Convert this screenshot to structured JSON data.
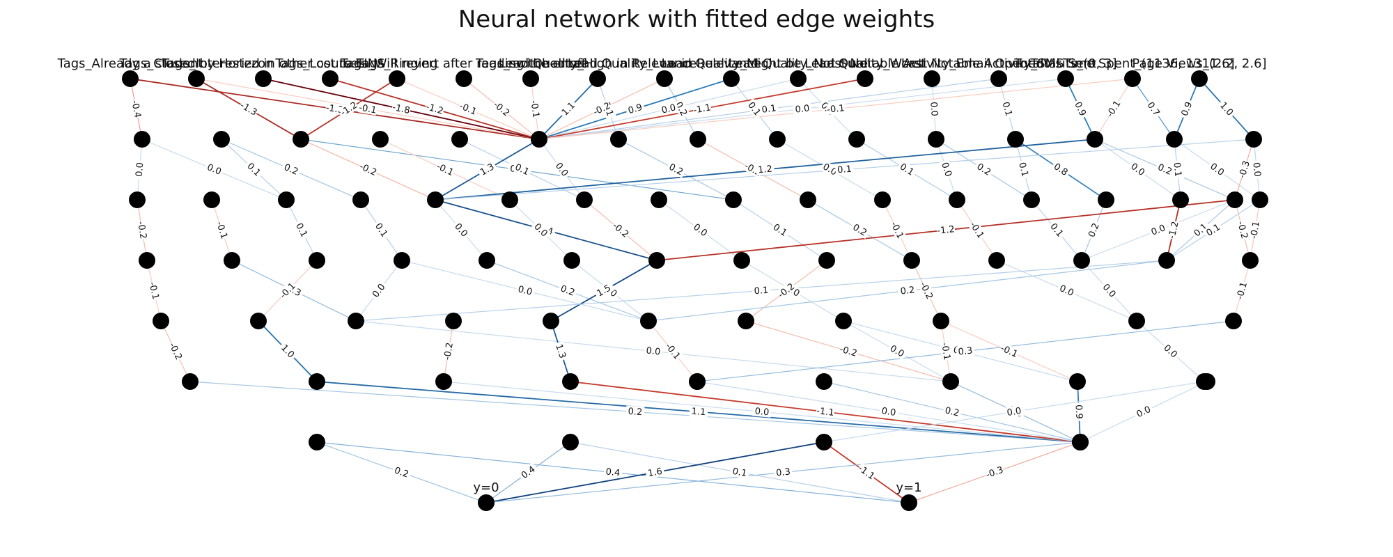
{
  "title": "Neural network with fitted edge weights",
  "colors": {
    "node": "#000000",
    "pos_strong": "#08306b",
    "pos_mid": "#2c7bb6",
    "pos_light": "#c6dbef",
    "neg_strong": "#67000d",
    "neg_mid": "#de4a34",
    "neg_light": "#fcdcd0"
  },
  "layer_sizes": [
    17,
    15,
    17,
    14,
    11,
    11,
    5,
    2
  ],
  "input_labels": [
    "Tags_Already a student",
    "Tags_Closed by Horizzon",
    "Tags_Interested in other courses",
    "Tags_Lost to EINS",
    "Tags_Ringing",
    "Tags_Will revert after reading the email",
    "Tags_switched off",
    "Lead Quality_High in Relevance",
    "Lead Quality_Low in Relevance",
    "Lead Quality_Might be",
    "Lead Quality_Not Sure",
    "Lead Quality_Worst",
    "Last Notable Activity_Email Opened",
    "Last Notable Activity_SMS Sent",
    "TotalVisits_(0, 3]",
    "Total Time Spent_(1136, 1311.6]",
    "Page Views_(2.2, 2.6]"
  ],
  "output_labels": [
    "y=0",
    "y=1"
  ],
  "edges": [
    {
      "l": 0,
      "a": 0,
      "b": 0,
      "w": -0.4
    },
    {
      "l": 0,
      "a": 0,
      "b": 5,
      "w": -1.3
    },
    {
      "l": 0,
      "a": 1,
      "b": 5,
      "w": -0.1
    },
    {
      "l": 0,
      "a": 1,
      "b": 2,
      "w": -1.3
    },
    {
      "l": 0,
      "a": 2,
      "b": 5,
      "w": 0.2
    },
    {
      "l": 0,
      "a": 2,
      "b": 5,
      "w": -1.8
    },
    {
      "l": 0,
      "a": 3,
      "b": 5,
      "w": -1.2
    },
    {
      "l": 0,
      "a": 4,
      "b": 5,
      "w": -0.1
    },
    {
      "l": 0,
      "a": 4,
      "b": 2,
      "w": -1.2
    },
    {
      "l": 0,
      "a": 5,
      "b": 5,
      "w": -0.2
    },
    {
      "l": 0,
      "a": 6,
      "b": 5,
      "w": -0.1
    },
    {
      "l": 0,
      "a": 7,
      "b": 5,
      "w": 1.1
    },
    {
      "l": 0,
      "a": 7,
      "b": 6,
      "w": 0.1
    },
    {
      "l": 0,
      "a": 8,
      "b": 5,
      "w": -0.2
    },
    {
      "l": 0,
      "a": 8,
      "b": 7,
      "w": 0.2
    },
    {
      "l": 0,
      "a": 9,
      "b": 5,
      "w": 0.9
    },
    {
      "l": 0,
      "a": 9,
      "b": 8,
      "w": 0.1
    },
    {
      "l": 0,
      "a": 10,
      "b": 5,
      "w": -0.0
    },
    {
      "l": 0,
      "a": 10,
      "b": 9,
      "w": 0.0
    },
    {
      "l": 0,
      "a": 11,
      "b": 5,
      "w": -1.1
    },
    {
      "l": 0,
      "a": 12,
      "b": 10,
      "w": -0.0
    },
    {
      "l": 0,
      "a": 13,
      "b": 5,
      "w": 0.1
    },
    {
      "l": 0,
      "a": 13,
      "b": 11,
      "w": 0.1
    },
    {
      "l": 0,
      "a": 14,
      "b": 5,
      "w": 0.0
    },
    {
      "l": 0,
      "a": 14,
      "b": 12,
      "w": 0.9
    },
    {
      "l": 0,
      "a": 15,
      "b": 12,
      "w": -0.1
    },
    {
      "l": 0,
      "a": 15,
      "b": 13,
      "w": 0.7
    },
    {
      "l": 0,
      "a": 15,
      "b": 5,
      "w": -0.1
    },
    {
      "l": 0,
      "a": 16,
      "b": 13,
      "w": 0.9
    },
    {
      "l": 0,
      "a": 16,
      "b": 14,
      "w": -0.2
    },
    {
      "l": 0,
      "a": 16,
      "b": 14,
      "w": 1.0
    },
    {
      "l": 1,
      "a": 0,
      "b": 0,
      "w": 0.0
    },
    {
      "l": 1,
      "a": 0,
      "b": 2,
      "w": 0.0
    },
    {
      "l": 1,
      "a": 1,
      "b": 2,
      "w": 0.1
    },
    {
      "l": 1,
      "a": 1,
      "b": 3,
      "w": 0.2
    },
    {
      "l": 1,
      "a": 2,
      "b": 4,
      "w": -0.2
    },
    {
      "l": 1,
      "a": 2,
      "b": 4,
      "w": -0.2
    },
    {
      "l": 1,
      "a": 2,
      "b": 8,
      "w": 0.5
    },
    {
      "l": 1,
      "a": 3,
      "b": 5,
      "w": -0.1
    },
    {
      "l": 1,
      "a": 4,
      "b": 6,
      "w": 0.1
    },
    {
      "l": 1,
      "a": 5,
      "b": 4,
      "w": 0.1
    },
    {
      "l": 1,
      "a": 5,
      "b": 4,
      "w": 1.3
    },
    {
      "l": 1,
      "a": 5,
      "b": 6,
      "w": 0.0
    },
    {
      "l": 1,
      "a": 6,
      "b": 8,
      "w": 0.2
    },
    {
      "l": 1,
      "a": 7,
      "b": 9,
      "w": -0.2
    },
    {
      "l": 1,
      "a": 8,
      "b": 10,
      "w": -0.0
    },
    {
      "l": 1,
      "a": 9,
      "b": 11,
      "w": -0.0
    },
    {
      "l": 1,
      "a": 9,
      "b": 11,
      "w": 0.1
    },
    {
      "l": 1,
      "a": 10,
      "b": 11,
      "w": 0.0
    },
    {
      "l": 1,
      "a": 10,
      "b": 12,
      "w": 0.2
    },
    {
      "l": 1,
      "a": 11,
      "b": 12,
      "w": 0.1
    },
    {
      "l": 1,
      "a": 11,
      "b": 13,
      "w": 0.8
    },
    {
      "l": 1,
      "a": 12,
      "b": 4,
      "w": 1.2
    },
    {
      "l": 1,
      "a": 12,
      "b": 14,
      "w": -0.0
    },
    {
      "l": 1,
      "a": 12,
      "b": 15,
      "w": 0.2
    },
    {
      "l": 1,
      "a": 13,
      "b": 16,
      "w": -0.0
    },
    {
      "l": 1,
      "a": 13,
      "b": 14,
      "w": 0.1
    },
    {
      "l": 1,
      "a": 14,
      "b": 15,
      "w": -0.3
    },
    {
      "l": 1,
      "a": 14,
      "b": 16,
      "w": 0.1
    },
    {
      "l": 1,
      "a": 14,
      "b": 16,
      "w": 0.0
    },
    {
      "l": 1,
      "a": 14,
      "b": 4,
      "w": 0.1
    },
    {
      "l": 2,
      "a": 0,
      "b": 0,
      "w": -0.2
    },
    {
      "l": 2,
      "a": 1,
      "b": 1,
      "w": -0.1
    },
    {
      "l": 2,
      "a": 2,
      "b": 2,
      "w": 0.1
    },
    {
      "l": 2,
      "a": 3,
      "b": 3,
      "w": 0.1
    },
    {
      "l": 2,
      "a": 4,
      "b": 4,
      "w": 0.0
    },
    {
      "l": 2,
      "a": 4,
      "b": 6,
      "w": -0.1
    },
    {
      "l": 2,
      "a": 4,
      "b": 6,
      "w": 1.4
    },
    {
      "l": 2,
      "a": 5,
      "b": 5,
      "w": 0.0
    },
    {
      "l": 2,
      "a": 6,
      "b": 6,
      "w": -0.2
    },
    {
      "l": 2,
      "a": 7,
      "b": 7,
      "w": 0.0
    },
    {
      "l": 2,
      "a": 8,
      "b": 8,
      "w": 0.1
    },
    {
      "l": 2,
      "a": 9,
      "b": 9,
      "w": 0.2
    },
    {
      "l": 2,
      "a": 10,
      "b": 9,
      "w": -0.1
    },
    {
      "l": 2,
      "a": 11,
      "b": 10,
      "w": -0.1
    },
    {
      "l": 2,
      "a": 12,
      "b": 11,
      "w": 0.1
    },
    {
      "l": 2,
      "a": 13,
      "b": 11,
      "w": 0.2
    },
    {
      "l": 2,
      "a": 14,
      "b": 12,
      "w": -1.2
    },
    {
      "l": 2,
      "a": 15,
      "b": 6,
      "w": -1.2
    },
    {
      "l": 2,
      "a": 15,
      "b": 12,
      "w": -0.1
    },
    {
      "l": 2,
      "a": 15,
      "b": 12,
      "w": 0.1
    },
    {
      "l": 2,
      "a": 16,
      "b": 13,
      "w": -0.1
    },
    {
      "l": 2,
      "a": 15,
      "b": 13,
      "w": -0.2
    },
    {
      "l": 2,
      "a": 15,
      "b": 11,
      "w": -0.0
    },
    {
      "l": 2,
      "a": 16,
      "b": 12,
      "w": 0.1
    },
    {
      "l": 2,
      "a": 16,
      "b": 13,
      "w": -0.1
    },
    {
      "l": 3,
      "a": 0,
      "b": 0,
      "w": -0.1
    },
    {
      "l": 3,
      "a": 1,
      "b": 2,
      "w": 0.3
    },
    {
      "l": 3,
      "a": 2,
      "b": 1,
      "w": -0.1
    },
    {
      "l": 3,
      "a": 3,
      "b": 2,
      "w": 0.0
    },
    {
      "l": 3,
      "a": 3,
      "b": 5,
      "w": 0.0
    },
    {
      "l": 3,
      "a": 4,
      "b": 5,
      "w": 0.2
    },
    {
      "l": 3,
      "a": 5,
      "b": 5,
      "w": 0.0
    },
    {
      "l": 3,
      "a": 6,
      "b": 4,
      "w": 1.5
    },
    {
      "l": 3,
      "a": 7,
      "b": 7,
      "w": 0.0
    },
    {
      "l": 3,
      "a": 8,
      "b": 6,
      "w": -0.2
    },
    {
      "l": 3,
      "a": 9,
      "b": 8,
      "w": -0.2
    },
    {
      "l": 3,
      "a": 10,
      "b": 9,
      "w": 0.0
    },
    {
      "l": 3,
      "a": 11,
      "b": 9,
      "w": 0.0
    },
    {
      "l": 3,
      "a": 12,
      "b": 2,
      "w": 0.1
    },
    {
      "l": 3,
      "a": 12,
      "b": 5,
      "w": 0.2
    },
    {
      "l": 3,
      "a": 13,
      "b": 10,
      "w": -0.1
    },
    {
      "l": 4,
      "a": 0,
      "b": 0,
      "w": -0.2
    },
    {
      "l": 4,
      "a": 1,
      "b": 1,
      "w": 1.0
    },
    {
      "l": 4,
      "a": 2,
      "b": 6,
      "w": -0.0
    },
    {
      "l": 4,
      "a": 3,
      "b": 2,
      "w": -0.2
    },
    {
      "l": 4,
      "a": 4,
      "b": 3,
      "w": 1.3
    },
    {
      "l": 4,
      "a": 5,
      "b": 4,
      "w": -0.1
    },
    {
      "l": 4,
      "a": 6,
      "b": 6,
      "w": -0.2
    },
    {
      "l": 4,
      "a": 7,
      "b": 6,
      "w": -0.0
    },
    {
      "l": 4,
      "a": 7,
      "b": 7,
      "w": 0.0
    },
    {
      "l": 4,
      "a": 8,
      "b": 6,
      "w": -0.1
    },
    {
      "l": 4,
      "a": 8,
      "b": 7,
      "w": -0.1
    },
    {
      "l": 4,
      "a": 9,
      "b": 8,
      "w": -0.0
    },
    {
      "l": 4,
      "a": 10,
      "b": 9,
      "w": 0.3
    },
    {
      "l": 5,
      "a": 0,
      "b": 6,
      "w": 0.2
    },
    {
      "l": 5,
      "a": 1,
      "b": 4,
      "w": 1.1
    },
    {
      "l": 5,
      "a": 2,
      "b": 4,
      "w": -0.0
    },
    {
      "l": 5,
      "a": 3,
      "b": 4,
      "w": -1.1
    },
    {
      "l": 5,
      "a": 4,
      "b": 4,
      "w": -0.0
    },
    {
      "l": 5,
      "a": 5,
      "b": 4,
      "w": 0.2
    },
    {
      "l": 5,
      "a": 6,
      "b": 4,
      "w": 0.3
    },
    {
      "l": 5,
      "a": 7,
      "b": 4,
      "w": 0.9
    },
    {
      "l": 5,
      "a": 8,
      "b": 2,
      "w": -0.0
    },
    {
      "l": 5,
      "a": 10,
      "b": 3,
      "w": 0.0
    },
    {
      "l": 6,
      "a": 0,
      "b": 0,
      "w": 0.2
    },
    {
      "l": 6,
      "a": 0,
      "b": 1,
      "w": 0.4
    },
    {
      "l": 6,
      "a": 1,
      "b": 0,
      "w": 0.4
    },
    {
      "l": 6,
      "a": 1,
      "b": 1,
      "w": 0.1
    },
    {
      "l": 6,
      "a": 2,
      "b": 0,
      "w": 1.6
    },
    {
      "l": 6,
      "a": 2,
      "b": 1,
      "w": -1.1
    },
    {
      "l": 6,
      "a": 3,
      "b": 0,
      "w": 0.3
    },
    {
      "l": 6,
      "a": 4,
      "b": 1,
      "w": -0.3
    }
  ]
}
